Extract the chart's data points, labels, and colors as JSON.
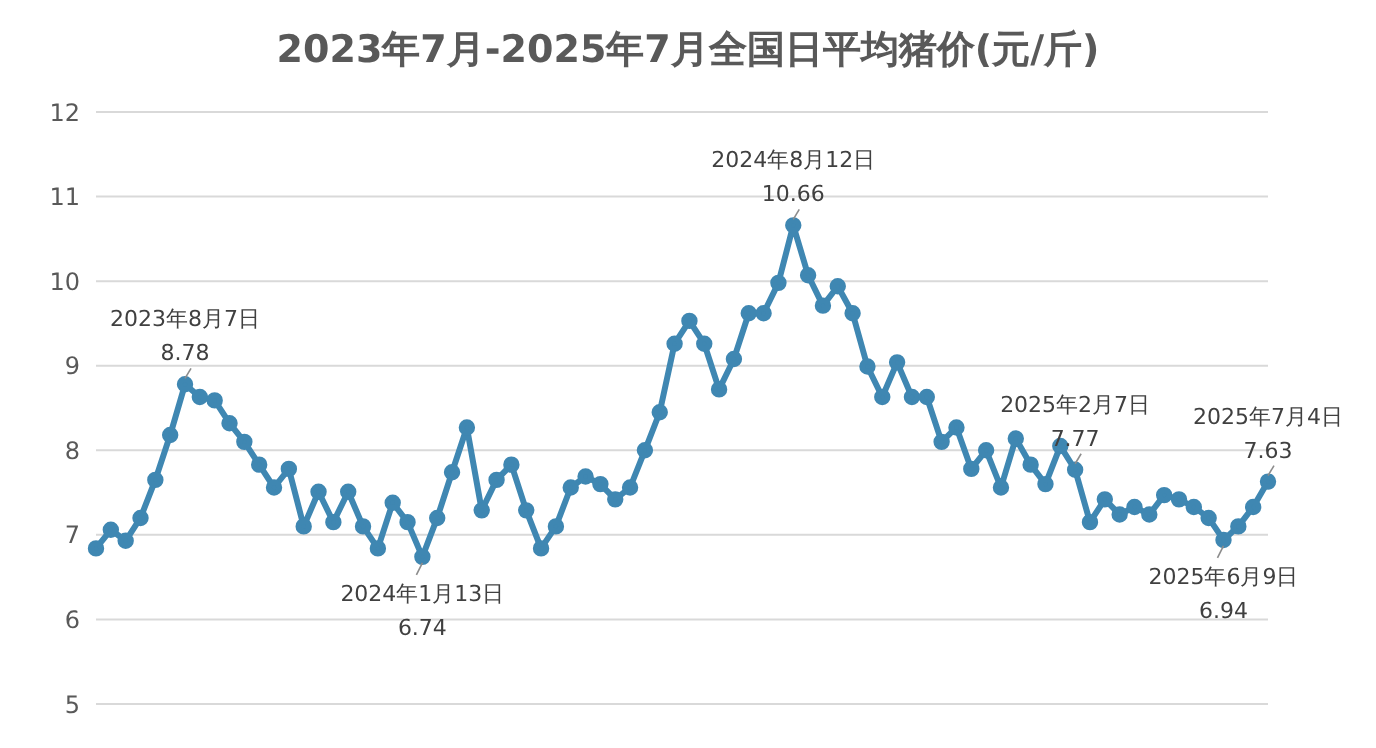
{
  "chart_data": {
    "type": "line",
    "title": "2023年7月-2025年7月全国日平均猪价(元/斤)",
    "marker": "circle",
    "grid": "y",
    "tick_labels": "y",
    "ylim": [
      5,
      12
    ],
    "yticks": [
      5,
      6,
      7,
      8,
      9,
      10,
      11,
      12
    ],
    "categories": [
      null,
      null,
      null,
      null,
      null,
      null,
      null,
      null,
      null,
      null,
      null,
      null,
      null,
      null,
      null,
      null,
      null,
      null,
      null,
      null,
      null,
      null,
      null,
      null,
      null,
      null,
      null,
      null,
      null,
      null,
      null,
      null,
      null,
      null,
      null,
      null,
      null,
      null,
      null,
      null,
      null,
      null,
      null,
      null,
      null,
      null,
      null,
      null,
      null,
      null,
      null,
      null,
      null,
      null,
      null,
      null,
      null,
      null,
      null,
      null,
      null,
      null,
      null,
      null,
      null,
      null,
      null,
      null,
      null,
      null,
      null,
      null,
      null,
      null,
      null,
      null,
      null,
      null,
      null,
      null
    ],
    "series": [
      {
        "color": "#3f87b2",
        "values": [
          6.84,
          7.06,
          6.93,
          7.2,
          7.65,
          8.18,
          8.78,
          8.63,
          8.59,
          8.32,
          8.1,
          7.83,
          7.56,
          7.78,
          7.1,
          7.51,
          7.15,
          7.51,
          7.1,
          6.84,
          7.38,
          7.15,
          6.74,
          7.2,
          7.74,
          8.27,
          7.29,
          7.65,
          7.83,
          7.29,
          6.84,
          7.1,
          7.56,
          7.69,
          7.6,
          7.42,
          7.56,
          8.0,
          8.45,
          9.26,
          9.53,
          9.26,
          8.72,
          9.08,
          9.62,
          9.62,
          9.98,
          10.66,
          10.07,
          9.71,
          9.94,
          9.62,
          8.99,
          8.63,
          9.04,
          8.63,
          8.63,
          8.1,
          8.27,
          7.78,
          8.0,
          7.56,
          8.14,
          7.83,
          7.6,
          8.05,
          7.77,
          7.15,
          7.42,
          7.24,
          7.33,
          7.24,
          7.47,
          7.42,
          7.33,
          7.2,
          6.94,
          7.1,
          7.33,
          7.63
        ]
      }
    ],
    "annotations": [
      {
        "text": "2023年8月7日\n8.78",
        "y": 8.78
      },
      {
        "text": "2024年1月13日\n6.74",
        "y": 6.74
      },
      {
        "text": "2024年8月12日\n10.66",
        "y": 10.66
      },
      {
        "text": "2025年2月7日\n7.77",
        "y": 7.77
      },
      {
        "text": "2025年6月9日\n6.94",
        "y": 6.94
      },
      {
        "text": "2025年7月4日\n7.63",
        "y": 7.63
      }
    ]
  }
}
